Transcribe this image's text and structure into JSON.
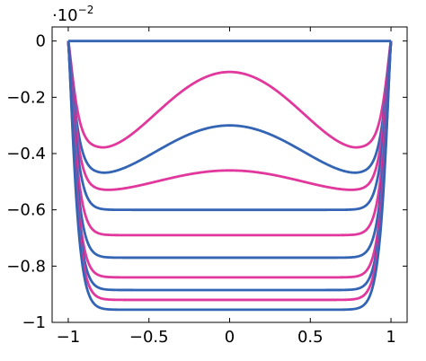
{
  "chart_data": {
    "type": "line",
    "title": "",
    "xlabel": "",
    "ylabel": "",
    "y_multiplier": {
      "base": "·10",
      "exponent": "−2"
    },
    "xlim": [
      -1.1,
      1.1
    ],
    "ylim": [
      -1.0,
      0.05
    ],
    "x_ticks": [
      -1,
      -0.5,
      0,
      0.5,
      1
    ],
    "x_tick_labels": [
      "−1",
      "−0.5",
      "0",
      "0.5",
      "1"
    ],
    "y_ticks": [
      0,
      -0.2,
      -0.4,
      -0.6,
      -0.8,
      -1
    ],
    "y_tick_labels": [
      "0",
      "−0.2",
      "−0.4",
      "−0.6",
      "−0.8",
      "−1"
    ],
    "grid": false,
    "legend": "none",
    "colors": {
      "blue": "#3465b4",
      "magenta": "#e0389c"
    },
    "series": [
      {
        "color": "#3465b4",
        "x": [
          -1,
          1
        ],
        "values": [
          0,
          0
        ]
      },
      {
        "color": "#e0389c",
        "center": -0.11,
        "dip": -0.38,
        "dip_x": 0.8,
        "flat": 0
      },
      {
        "color": "#3465b4",
        "center": -0.3,
        "dip": -0.47,
        "dip_x": 0.8,
        "flat": 0
      },
      {
        "color": "#e0389c",
        "center": -0.46,
        "dip": -0.53,
        "dip_x": 0.78,
        "flat": 0
      },
      {
        "color": "#3465b4",
        "center": -0.6,
        "dip": -0.6,
        "dip_x": 0.7,
        "flat": 1
      },
      {
        "color": "#e0389c",
        "center": -0.69,
        "dip": -0.69,
        "dip_x": 0.7,
        "flat": 1
      },
      {
        "color": "#3465b4",
        "center": -0.77,
        "dip": -0.77,
        "dip_x": 0.7,
        "flat": 1
      },
      {
        "color": "#e0389c",
        "center": -0.84,
        "dip": -0.84,
        "dip_x": 0.7,
        "flat": 1
      },
      {
        "color": "#3465b4",
        "center": -0.885,
        "dip": -0.885,
        "dip_x": 0.7,
        "flat": 1
      },
      {
        "color": "#e0389c",
        "center": -0.92,
        "dip": -0.92,
        "dip_x": 0.7,
        "flat": 1
      },
      {
        "color": "#3465b4",
        "center": -0.955,
        "dip": -0.955,
        "dip_x": 0.7,
        "flat": 1
      }
    ]
  }
}
